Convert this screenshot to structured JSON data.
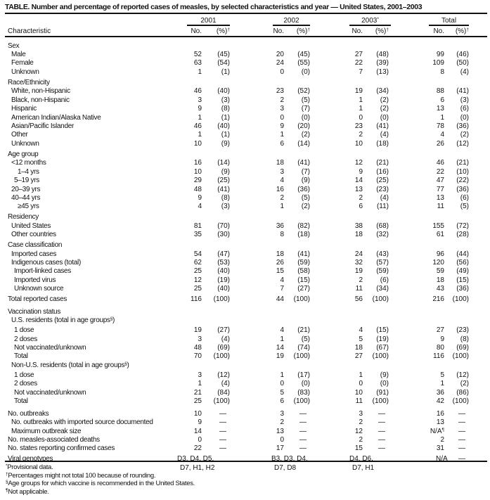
{
  "title": "TABLE. Number and percentage of reported cases of measles, by selected characteristics and year — United States, 2001–2003",
  "header": {
    "characteristic": "Characteristic",
    "years": [
      {
        "label": "2001",
        "mark": ""
      },
      {
        "label": "2002",
        "mark": ""
      },
      {
        "label": "2003",
        "mark": "*"
      },
      {
        "label": "Total",
        "mark": ""
      }
    ],
    "no_label": "No.",
    "pct_label": "(%)",
    "pct_mark": "†"
  },
  "rows": [
    {
      "kind": "heading",
      "label": "Sex",
      "level": 0
    },
    {
      "kind": "item",
      "label": "Male",
      "level": 1,
      "no": [
        "52",
        "20",
        "27",
        "99"
      ],
      "pct": [
        "(45)",
        "(45)",
        "(48)",
        "(46)"
      ]
    },
    {
      "kind": "item",
      "label": "Female",
      "level": 1,
      "no": [
        "63",
        "24",
        "22",
        "109"
      ],
      "pct": [
        "(54)",
        "(55)",
        "(39)",
        "(50)"
      ]
    },
    {
      "kind": "item",
      "label": "Unknown",
      "level": 1,
      "no": [
        "1",
        "0",
        "7",
        "8"
      ],
      "pct": [
        "(1)",
        "(0)",
        "(13)",
        "(4)"
      ]
    },
    {
      "kind": "heading",
      "label": "Race/Ethnicity",
      "level": 0
    },
    {
      "kind": "item",
      "label": "White, non-Hispanic",
      "level": 1,
      "no": [
        "46",
        "23",
        "19",
        "88"
      ],
      "pct": [
        "(40)",
        "(52)",
        "(34)",
        "(41)"
      ]
    },
    {
      "kind": "item",
      "label": "Black, non-Hispanic",
      "level": 1,
      "no": [
        "3",
        "2",
        "1",
        "6"
      ],
      "pct": [
        "(3)",
        "(5)",
        "(2)",
        "(3)"
      ]
    },
    {
      "kind": "item",
      "label": "Hispanic",
      "level": 1,
      "no": [
        "9",
        "3",
        "1",
        "13"
      ],
      "pct": [
        "(8)",
        "(7)",
        "(2)",
        "(6)"
      ]
    },
    {
      "kind": "item",
      "label": "American Indian/Alaska Native",
      "level": 1,
      "no": [
        "1",
        "0",
        "0",
        "1"
      ],
      "pct": [
        "(1)",
        "(0)",
        "(0)",
        "(0)"
      ]
    },
    {
      "kind": "item",
      "label": "Asian/Pacific Islander",
      "level": 1,
      "no": [
        "46",
        "9",
        "23",
        "78"
      ],
      "pct": [
        "(40)",
        "(20)",
        "(41)",
        "(36)"
      ]
    },
    {
      "kind": "item",
      "label": "Other",
      "level": 1,
      "no": [
        "1",
        "1",
        "2",
        "4"
      ],
      "pct": [
        "(1)",
        "(2)",
        "(4)",
        "(2)"
      ]
    },
    {
      "kind": "item",
      "label": "Unknown",
      "level": 1,
      "no": [
        "10",
        "6",
        "10",
        "26"
      ],
      "pct": [
        "(9)",
        "(14)",
        "(18)",
        "(12)"
      ]
    },
    {
      "kind": "heading",
      "label": "Age group",
      "level": 0
    },
    {
      "kind": "item",
      "label": "<12 months",
      "level": 1,
      "no": [
        "16",
        "18",
        "12",
        "46"
      ],
      "pct": [
        "(14)",
        "(41)",
        "(21)",
        "(21)"
      ]
    },
    {
      "kind": "item",
      "label": "1–4 yrs",
      "level": 3,
      "no": [
        "10",
        "3",
        "9",
        "22"
      ],
      "pct": [
        "(9)",
        "(7)",
        "(16)",
        "(10)"
      ]
    },
    {
      "kind": "item",
      "label": "5–19 yrs",
      "level": 2,
      "no": [
        "29",
        "4",
        "14",
        "47"
      ],
      "pct": [
        "(25)",
        "(9)",
        "(25)",
        "(22)"
      ]
    },
    {
      "kind": "item",
      "label": "20–39 yrs",
      "level": 1,
      "no": [
        "48",
        "16",
        "13",
        "77"
      ],
      "pct": [
        "(41)",
        "(36)",
        "(23)",
        "(36)"
      ]
    },
    {
      "kind": "item",
      "label": "40–44 yrs",
      "level": 1,
      "no": [
        "9",
        "2",
        "2",
        "13"
      ],
      "pct": [
        "(8)",
        "(5)",
        "(4)",
        "(6)"
      ]
    },
    {
      "kind": "item",
      "label": "≥45 yrs",
      "level": 3,
      "no": [
        "4",
        "1",
        "6",
        "11"
      ],
      "pct": [
        "(3)",
        "(2)",
        "(11)",
        "(5)"
      ]
    },
    {
      "kind": "heading",
      "label": "Residency",
      "level": 0
    },
    {
      "kind": "item",
      "label": "United States",
      "level": 1,
      "no": [
        "81",
        "36",
        "38",
        "155"
      ],
      "pct": [
        "(70)",
        "(82)",
        "(68)",
        "(72)"
      ]
    },
    {
      "kind": "item",
      "label": "Other countries",
      "level": 1,
      "no": [
        "35",
        "8",
        "18",
        "61"
      ],
      "pct": [
        "(30)",
        "(18)",
        "(32)",
        "(28)"
      ]
    },
    {
      "kind": "heading",
      "label": "Case classification",
      "level": 0
    },
    {
      "kind": "item",
      "label": "Imported cases",
      "level": 1,
      "no": [
        "54",
        "18",
        "24",
        "96"
      ],
      "pct": [
        "(47)",
        "(41)",
        "(43)",
        "(44)"
      ]
    },
    {
      "kind": "item",
      "label": "Indigenous cases (total)",
      "level": 1,
      "no": [
        "62",
        "26",
        "32",
        "120"
      ],
      "pct": [
        "(53)",
        "(59)",
        "(57)",
        "(56)"
      ]
    },
    {
      "kind": "item",
      "label": "Import-linked cases",
      "level": 2,
      "no": [
        "25",
        "15",
        "19",
        "59"
      ],
      "pct": [
        "(40)",
        "(58)",
        "(59)",
        "(49)"
      ]
    },
    {
      "kind": "item",
      "label": "Imported virus",
      "level": 2,
      "no": [
        "12",
        "4",
        "2",
        "18"
      ],
      "pct": [
        "(19)",
        "(15)",
        "(6)",
        "(15)"
      ]
    },
    {
      "kind": "item",
      "label": "Unknown source",
      "level": 2,
      "no": [
        "25",
        "7",
        "11",
        "43"
      ],
      "pct": [
        "(40)",
        "(27)",
        "(34)",
        "(36)"
      ]
    },
    {
      "kind": "total",
      "label": "Total reported cases",
      "level": 0,
      "no": [
        "116",
        "44",
        "56",
        "216"
      ],
      "pct": [
        "(100)",
        "(100)",
        "(100)",
        "(100)"
      ]
    },
    {
      "kind": "section",
      "label": "Vaccination status",
      "level": 0
    },
    {
      "kind": "heading",
      "label": "U.S. residents (total in age groups",
      "mark": "§",
      "label_end": ")",
      "level": 1
    },
    {
      "kind": "item",
      "label": "1 dose",
      "level": 2,
      "no": [
        "19",
        "4",
        "4",
        "27"
      ],
      "pct": [
        "(27)",
        "(21)",
        "(15)",
        "(23)"
      ]
    },
    {
      "kind": "item",
      "label": "2 doses",
      "level": 2,
      "no": [
        "3",
        "1",
        "5",
        "9"
      ],
      "pct": [
        "(4)",
        "(5)",
        "(19)",
        "(8)"
      ]
    },
    {
      "kind": "item",
      "label": "Not vaccinated/unknown",
      "level": 2,
      "no": [
        "48",
        "14",
        "18",
        "80"
      ],
      "pct": [
        "(69)",
        "(74)",
        "(67)",
        "(69)"
      ]
    },
    {
      "kind": "item",
      "label": "Total",
      "level": 2,
      "no": [
        "70",
        "19",
        "27",
        "116"
      ],
      "pct": [
        "(100)",
        "(100)",
        "(100)",
        "(100)"
      ]
    },
    {
      "kind": "heading",
      "label": "Non-U.S. residents (total in age groups",
      "mark": "§",
      "label_end": ")",
      "level": 1
    },
    {
      "kind": "item",
      "label": "1 dose",
      "level": 2,
      "no": [
        "3",
        "1",
        "1",
        "5"
      ],
      "pct": [
        "(12)",
        "(17)",
        "(9)",
        "(12)"
      ]
    },
    {
      "kind": "item",
      "label": "2 doses",
      "level": 2,
      "no": [
        "1",
        "0",
        "0",
        "1"
      ],
      "pct": [
        "(4)",
        "(0)",
        "(0)",
        "(2)"
      ]
    },
    {
      "kind": "item",
      "label": "Not vaccinated/unknown",
      "level": 2,
      "no": [
        "21",
        "5",
        "10",
        "36"
      ],
      "pct": [
        "(84)",
        "(83)",
        "(91)",
        "(86)"
      ]
    },
    {
      "kind": "item",
      "label": "Total",
      "level": 2,
      "no": [
        "25",
        "6",
        "11",
        "42"
      ],
      "pct": [
        "(100)",
        "(100)",
        "(100)",
        "(100)"
      ]
    },
    {
      "kind": "section",
      "label": "No. outbreaks",
      "level": 0,
      "no": [
        "10",
        "3",
        "3",
        "16"
      ],
      "pct": [
        "—",
        "—",
        "—",
        "—"
      ]
    },
    {
      "kind": "item",
      "label": "No. outbreaks with imported source documented",
      "level": 1,
      "no": [
        "9",
        "2",
        "2",
        "13"
      ],
      "pct": [
        "—",
        "—",
        "—",
        "—"
      ]
    },
    {
      "kind": "item",
      "label": "Maximum outbreak size",
      "level": 1,
      "no": [
        "14",
        "13",
        "12",
        "N/A"
      ],
      "no_marks": [
        "",
        "",
        "",
        "¶"
      ],
      "pct": [
        "—",
        "—",
        "—",
        "—"
      ]
    },
    {
      "kind": "item",
      "label": "No. measles-associated deaths",
      "level": 0,
      "no": [
        "0",
        "0",
        "2",
        "2"
      ],
      "pct": [
        "—",
        "—",
        "—",
        "—"
      ]
    },
    {
      "kind": "item",
      "label": "No. states reporting confirmed cases",
      "level": 0,
      "no": [
        "22",
        "17",
        "15",
        "31"
      ],
      "pct": [
        "—",
        "—",
        "—",
        "—"
      ]
    },
    {
      "kind": "genotypes",
      "label": "Viral genotypes",
      "level": 0,
      "genotypes": [
        [
          "D3, D4, D5,",
          "D7, H1, H2"
        ],
        [
          "B3, D3, D4,",
          "D7, D8"
        ],
        [
          "D4, D6,",
          "D7, H1"
        ],
        [
          "N/A"
        ]
      ],
      "pct": [
        "",
        "",
        "",
        "—"
      ]
    }
  ],
  "footnotes": [
    {
      "mark": "*",
      "text": "Provisional data."
    },
    {
      "mark": "†",
      "text": "Percentages might not total 100 because of rounding."
    },
    {
      "mark": "§",
      "text": "Age groups for which vaccine is recommended in the United States."
    },
    {
      "mark": "¶",
      "text": "Not applicable."
    }
  ]
}
